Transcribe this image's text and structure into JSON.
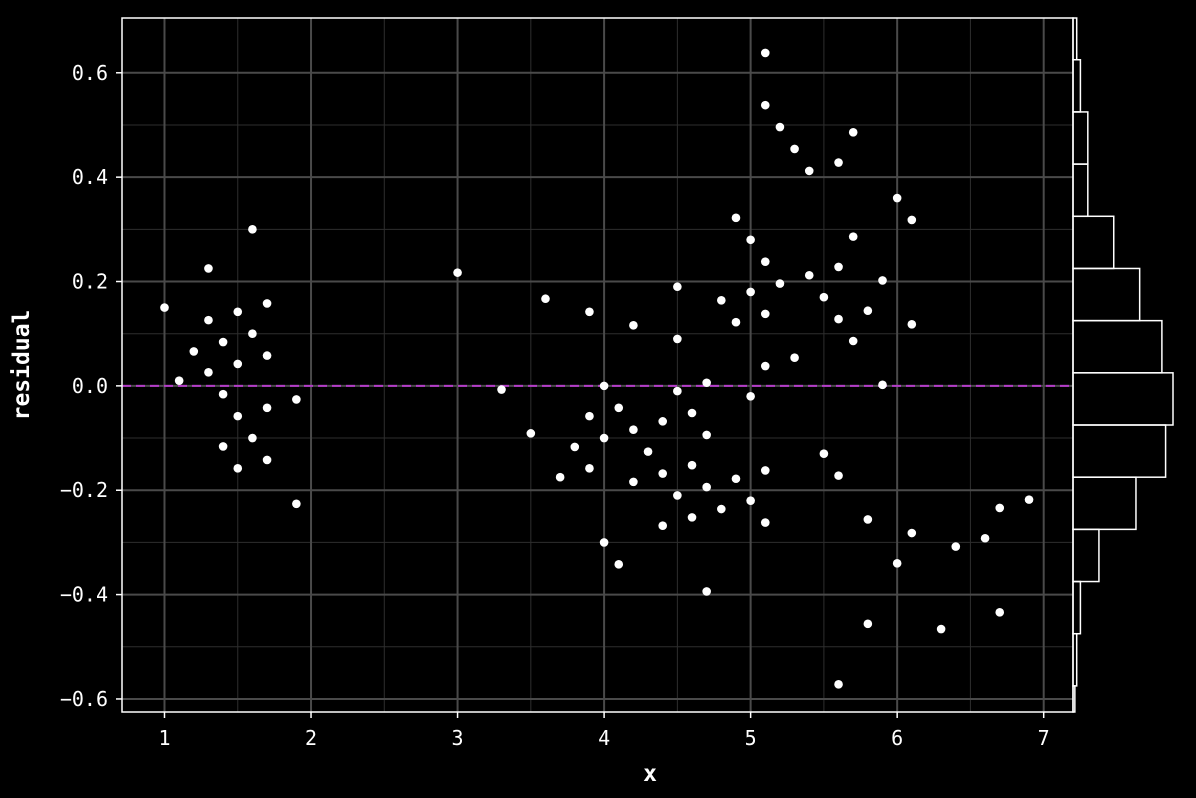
{
  "chart_data": {
    "type": "scatter",
    "title": "",
    "xlabel": "x",
    "ylabel": "residual",
    "xlim": [
      0.71,
      7.2
    ],
    "ylim": [
      -0.625,
      0.705
    ],
    "xticks": [
      1,
      2,
      3,
      4,
      5,
      6,
      7
    ],
    "xtick_labels": [
      "1",
      "2",
      "3",
      "4",
      "5",
      "6",
      "7"
    ],
    "yticks": [
      -0.6,
      -0.4,
      -0.2,
      0.0,
      0.2,
      0.4,
      0.6
    ],
    "ytick_labels": [
      "−0.6",
      "−0.4",
      "−0.2",
      "0.0",
      "0.2",
      "0.4",
      "0.6"
    ],
    "grid": true,
    "reference_line": {
      "y": 0.0,
      "style": "dashed",
      "color": "#b43cc8"
    },
    "colors": {
      "background": "#000000",
      "grid": "#4a4a4a",
      "points": "#ffffff",
      "axes": "#ffffff"
    },
    "points": [
      [
        1.0,
        0.15
      ],
      [
        1.1,
        0.01
      ],
      [
        1.2,
        0.066
      ],
      [
        1.3,
        0.225
      ],
      [
        1.3,
        0.126
      ],
      [
        1.3,
        0.026
      ],
      [
        1.4,
        0.084
      ],
      [
        1.4,
        -0.016
      ],
      [
        1.4,
        -0.116
      ],
      [
        1.5,
        0.142
      ],
      [
        1.5,
        0.042
      ],
      [
        1.5,
        -0.058
      ],
      [
        1.5,
        -0.158
      ],
      [
        1.6,
        0.3
      ],
      [
        1.6,
        0.1
      ],
      [
        1.6,
        -0.1
      ],
      [
        1.7,
        0.158
      ],
      [
        1.7,
        0.058
      ],
      [
        1.7,
        -0.042
      ],
      [
        1.7,
        -0.142
      ],
      [
        1.9,
        -0.026
      ],
      [
        1.9,
        -0.226
      ],
      [
        3.0,
        0.217
      ],
      [
        3.3,
        -0.007
      ],
      [
        3.5,
        -0.091
      ],
      [
        3.6,
        0.167
      ],
      [
        3.7,
        -0.175
      ],
      [
        3.8,
        -0.117
      ],
      [
        3.9,
        0.142
      ],
      [
        3.9,
        -0.058
      ],
      [
        3.9,
        -0.158
      ],
      [
        4.0,
        0.0
      ],
      [
        4.0,
        -0.1
      ],
      [
        4.0,
        -0.3
      ],
      [
        4.1,
        -0.042
      ],
      [
        4.1,
        -0.342
      ],
      [
        4.2,
        0.116
      ],
      [
        4.2,
        -0.084
      ],
      [
        4.2,
        -0.184
      ],
      [
        4.3,
        -0.126
      ],
      [
        4.4,
        -0.068
      ],
      [
        4.4,
        -0.168
      ],
      [
        4.4,
        -0.268
      ],
      [
        4.5,
        0.19
      ],
      [
        4.5,
        0.09
      ],
      [
        4.5,
        -0.01
      ],
      [
        4.5,
        -0.21
      ],
      [
        4.6,
        -0.052
      ],
      [
        4.6,
        -0.152
      ],
      [
        4.6,
        -0.252
      ],
      [
        4.7,
        0.006
      ],
      [
        4.7,
        -0.094
      ],
      [
        4.7,
        -0.194
      ],
      [
        4.7,
        -0.394
      ],
      [
        4.8,
        0.164
      ],
      [
        4.8,
        -0.236
      ],
      [
        4.9,
        0.322
      ],
      [
        4.9,
        0.122
      ],
      [
        4.9,
        -0.178
      ],
      [
        5.0,
        0.28
      ],
      [
        5.0,
        0.18
      ],
      [
        5.0,
        -0.02
      ],
      [
        5.0,
        -0.22
      ],
      [
        5.1,
        0.638
      ],
      [
        5.1,
        0.538
      ],
      [
        5.1,
        0.238
      ],
      [
        5.1,
        0.138
      ],
      [
        5.1,
        0.038
      ],
      [
        5.1,
        -0.162
      ],
      [
        5.1,
        -0.262
      ],
      [
        5.2,
        0.496
      ],
      [
        5.2,
        0.196
      ],
      [
        5.3,
        0.454
      ],
      [
        5.3,
        0.054
      ],
      [
        5.4,
        0.412
      ],
      [
        5.4,
        0.212
      ],
      [
        5.5,
        0.17
      ],
      [
        5.5,
        -0.13
      ],
      [
        5.6,
        0.428
      ],
      [
        5.6,
        0.228
      ],
      [
        5.6,
        0.128
      ],
      [
        5.6,
        -0.172
      ],
      [
        5.6,
        -0.572
      ],
      [
        5.7,
        0.486
      ],
      [
        5.7,
        0.286
      ],
      [
        5.7,
        0.086
      ],
      [
        5.8,
        0.144
      ],
      [
        5.8,
        -0.256
      ],
      [
        5.8,
        -0.456
      ],
      [
        5.9,
        0.202
      ],
      [
        5.9,
        0.002
      ],
      [
        6.0,
        0.36
      ],
      [
        6.0,
        -0.34
      ],
      [
        6.1,
        0.318
      ],
      [
        6.1,
        0.118
      ],
      [
        6.1,
        -0.282
      ],
      [
        6.3,
        -0.466
      ],
      [
        6.4,
        -0.308
      ],
      [
        6.6,
        -0.292
      ],
      [
        6.7,
        -0.234
      ],
      [
        6.7,
        -0.434
      ],
      [
        6.9,
        -0.218
      ]
    ],
    "marginal_histogram": {
      "orientation": "horizontal",
      "bin_edges": [
        -0.625,
        -0.575,
        -0.475,
        -0.375,
        -0.275,
        -0.175,
        -0.075,
        0.025,
        0.125,
        0.225,
        0.325,
        0.425,
        0.525,
        0.625,
        0.705
      ],
      "counts": [
        0.5,
        1,
        2,
        7,
        17,
        25,
        27,
        24,
        18,
        11,
        4,
        4,
        2,
        1
      ]
    }
  }
}
